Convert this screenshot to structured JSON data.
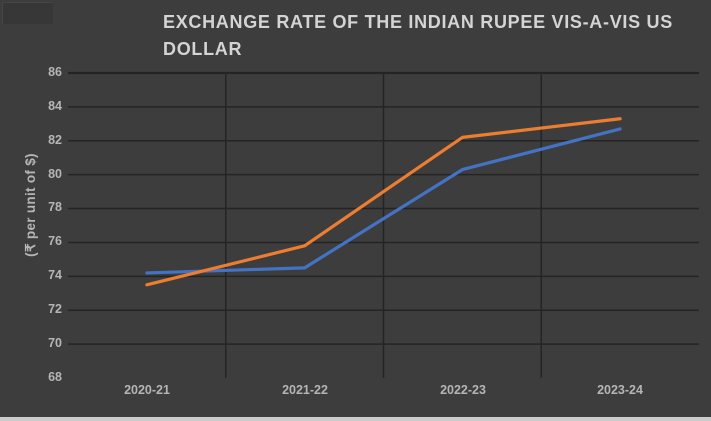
{
  "chart_data": {
    "type": "line",
    "title": "EXCHANGE RATE OF THE INDIAN RUPEE VIS-A-VIS US DOLLAR",
    "title_lines": [
      "EXCHANGE RATE OF THE INDIAN RUPEE VIS-A-VIS US",
      "DOLLAR"
    ],
    "ylabel": "(₹ per unit of $)",
    "xlabel": "",
    "categories": [
      "2020-21",
      "2021-22",
      "2022-23",
      "2023-24"
    ],
    "series": [
      {
        "name": "blue",
        "color": "#4472c4",
        "values": [
          74.2,
          74.5,
          80.3,
          82.7
        ]
      },
      {
        "name": "orange",
        "color": "#ed7d31",
        "values": [
          73.5,
          75.8,
          82.2,
          83.3
        ]
      }
    ],
    "ylim": [
      68,
      86
    ],
    "yticks": [
      86,
      84,
      82,
      80,
      78,
      76,
      74,
      72,
      70,
      68
    ],
    "grid": true,
    "legend": "none"
  },
  "style": {
    "background": "#3d3d3d",
    "gridline_color": "#242424",
    "title_color": "#d4d4d4",
    "tick_label_color": "#b5b5b5",
    "bottom_strip_color": "#cbcbcb"
  }
}
